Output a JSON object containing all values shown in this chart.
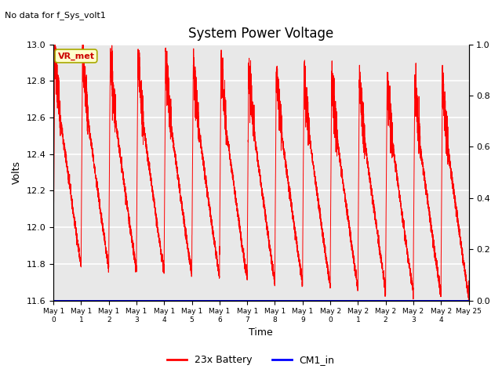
{
  "title": "System Power Voltage",
  "no_data_text": "No data for f_Sys_volt1",
  "ylabel": "Volts",
  "xlabel": "Time",
  "ylim_left": [
    11.6,
    13.0
  ],
  "ylim_right": [
    0.0,
    1.0
  ],
  "yticks_left": [
    11.6,
    11.8,
    12.0,
    12.2,
    12.4,
    12.6,
    12.8,
    13.0
  ],
  "yticks_right": [
    0.0,
    0.2,
    0.4,
    0.6,
    0.8,
    1.0
  ],
  "xtick_labels": [
    "May 1\n0",
    "May 1\n1",
    "May 1\n2",
    "May 1\n3",
    "May 1\n4",
    "May 1\n5",
    "May 1\n6",
    "May 1\n7",
    "May 1\n8",
    "May 1\n9",
    "May 2\n0",
    "May 2\n1",
    "May 2\n2",
    "May 2\n3",
    "May 2\n4",
    "May 25"
  ],
  "legend_entries": [
    "23x Battery",
    "CM1_in"
  ],
  "legend_colors": [
    "#ff0000",
    "#0000ff"
  ],
  "vr_met_label": "VR_met",
  "vr_met_bg": "#ffffcc",
  "vr_met_border": "#aaaa00",
  "line_color_battery": "#ff0000",
  "line_color_cm1": "#0000cc",
  "grid_color": "#ffffff",
  "plot_bg": "#e8e8e8",
  "fig_width": 6.4,
  "fig_height": 4.8,
  "fig_dpi": 100
}
